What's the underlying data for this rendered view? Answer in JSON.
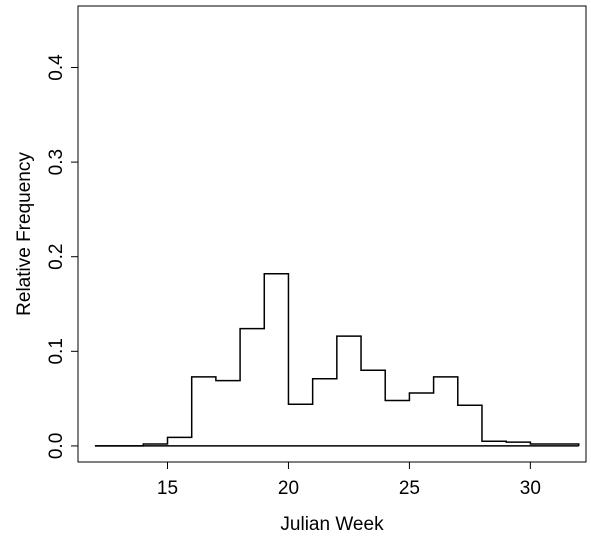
{
  "chart_data": {
    "type": "histogram",
    "title": "",
    "xlabel": "Julian Week",
    "ylabel": "Relative Frequency",
    "xlim": [
      11.3,
      32.3
    ],
    "ylim": [
      -0.017,
      0.465
    ],
    "x_ticks": [
      15,
      20,
      25,
      30
    ],
    "y_ticks": [
      0.0,
      0.1,
      0.2,
      0.3,
      0.4
    ],
    "x_tick_labels": [
      "15",
      "20",
      "25",
      "30"
    ],
    "y_tick_labels": [
      "0.0",
      "0.1",
      "0.2",
      "0.3",
      "0.4"
    ],
    "grid": false,
    "legend": "none",
    "line_color": "#000000",
    "bins": [
      {
        "start": 12,
        "end": 13,
        "value": 0.0
      },
      {
        "start": 13,
        "end": 14,
        "value": 0.0
      },
      {
        "start": 14,
        "end": 15,
        "value": 0.002
      },
      {
        "start": 15,
        "end": 16,
        "value": 0.009
      },
      {
        "start": 16,
        "end": 17,
        "value": 0.073
      },
      {
        "start": 17,
        "end": 18,
        "value": 0.069
      },
      {
        "start": 18,
        "end": 19,
        "value": 0.124
      },
      {
        "start": 19,
        "end": 20,
        "value": 0.182
      },
      {
        "start": 20,
        "end": 21,
        "value": 0.044
      },
      {
        "start": 21,
        "end": 22,
        "value": 0.071
      },
      {
        "start": 22,
        "end": 23,
        "value": 0.116
      },
      {
        "start": 23,
        "end": 24,
        "value": 0.08
      },
      {
        "start": 24,
        "end": 25,
        "value": 0.048
      },
      {
        "start": 25,
        "end": 26,
        "value": 0.056
      },
      {
        "start": 26,
        "end": 27,
        "value": 0.073
      },
      {
        "start": 27,
        "end": 28,
        "value": 0.043
      },
      {
        "start": 28,
        "end": 29,
        "value": 0.005
      },
      {
        "start": 29,
        "end": 30,
        "value": 0.004
      },
      {
        "start": 30,
        "end": 31,
        "value": 0.002
      },
      {
        "start": 31,
        "end": 32,
        "value": 0.002
      }
    ]
  }
}
